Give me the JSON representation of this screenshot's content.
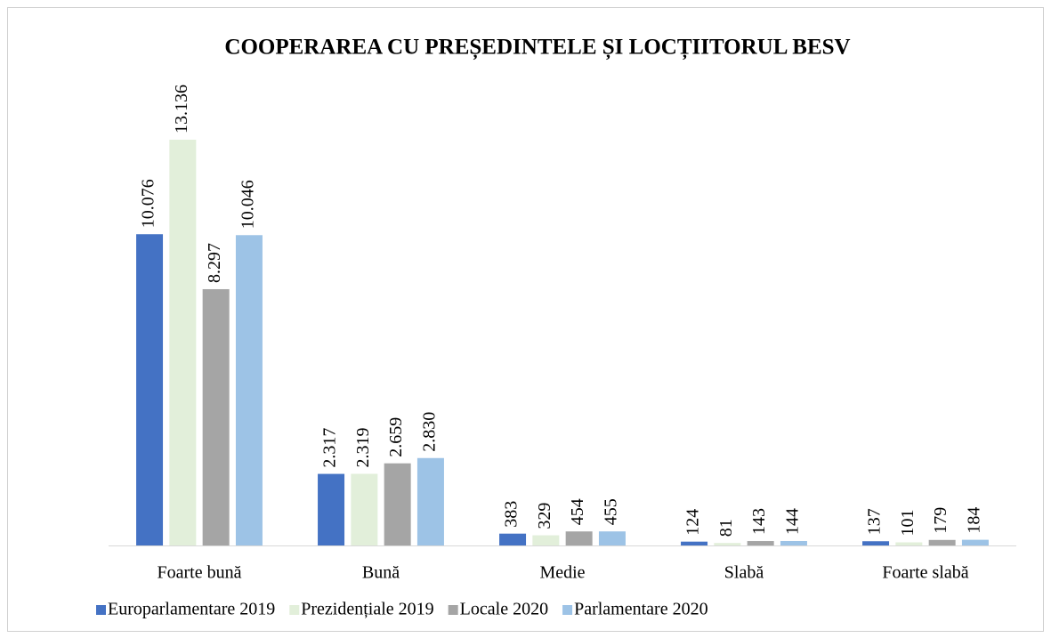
{
  "chart_data": {
    "type": "bar",
    "title": "COOPERAREA CU PREȘEDINTELE ȘI LOCȚIITORUL BESV",
    "categories": [
      "Foarte bună",
      "Bună",
      "Medie",
      "Slabă",
      "Foarte slabă"
    ],
    "series": [
      {
        "name": "Europarlamentare 2019",
        "color": "#4472c4",
        "values": [
          10076,
          2317,
          383,
          124,
          137
        ],
        "value_labels": [
          "10.076",
          "2.317",
          "383",
          "124",
          "137"
        ]
      },
      {
        "name": "Prezidențiale 2019",
        "color": "#e2efda",
        "values": [
          13136,
          2319,
          329,
          81,
          101
        ],
        "value_labels": [
          "13.136",
          "2.319",
          "329",
          "81",
          "101"
        ]
      },
      {
        "name": "Locale 2020",
        "color": "#a5a5a5",
        "values": [
          8297,
          2659,
          454,
          143,
          179
        ],
        "value_labels": [
          "8.297",
          "2.659",
          "454",
          "143",
          "179"
        ]
      },
      {
        "name": "Parlamentare 2020",
        "color": "#9dc3e6",
        "values": [
          10046,
          2830,
          455,
          144,
          184
        ],
        "value_labels": [
          "10.046",
          "2.830",
          "455",
          "144",
          "184"
        ]
      }
    ],
    "legend": "bottom"
  }
}
